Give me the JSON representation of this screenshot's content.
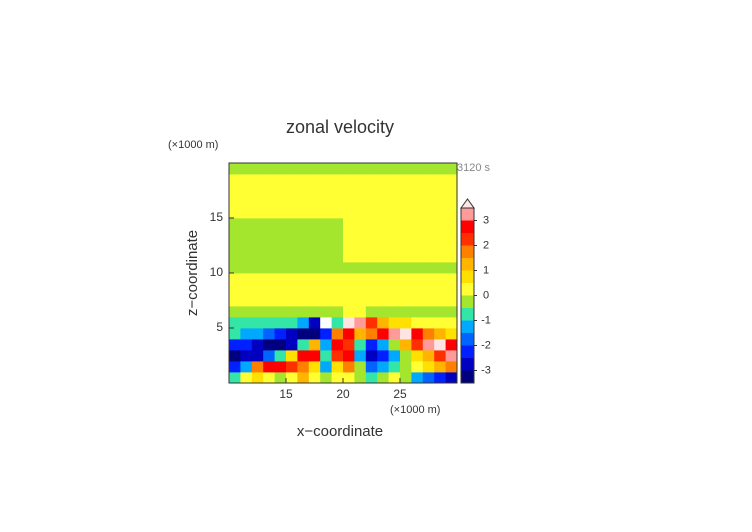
{
  "chart_data": {
    "type": "contour",
    "title": "zonal velocity",
    "xlabel": "x−coordinate",
    "ylabel": "z−coordinate",
    "xunit": "(×1000 m)",
    "yunit": "(×1000 m)",
    "annotation": "3120 s",
    "xlim": [
      10,
      30
    ],
    "ylim": [
      0,
      20
    ],
    "xticks": [
      15,
      20,
      25
    ],
    "yticks": [
      5,
      10,
      15
    ],
    "x": [
      10.5,
      11.5,
      12.5,
      13.5,
      14.5,
      15.5,
      16.5,
      17.5,
      18.5,
      19.5,
      20.5,
      21.5,
      22.5,
      23.5,
      24.5,
      25.5,
      26.5,
      27.5,
      28.5,
      29.5
    ],
    "y": [
      0.5,
      1.5,
      2.5,
      3.5,
      4.5,
      5.5,
      6.5,
      7.5,
      8.5,
      9.5,
      10.5,
      11.5,
      12.5,
      13.5,
      14.5,
      15.5,
      16.5,
      17.5,
      18.5,
      19.5
    ],
    "z": [
      [
        -0.8,
        0.3,
        0.8,
        0.3,
        -0.2,
        0.3,
        1.2,
        0.3,
        -0.3,
        0.2,
        0.2,
        -0.3,
        -0.8,
        -0.3,
        0.3,
        -0.3,
        -1.2,
        -1.8,
        -2.5,
        -2.8
      ],
      [
        -2.5,
        -1.5,
        1.5,
        2.6,
        2.8,
        2.2,
        1.5,
        0.8,
        -1.2,
        0.5,
        1.8,
        -0.5,
        -1.8,
        -1.2,
        -0.6,
        -0.3,
        0.3,
        0.8,
        1.2,
        1.5
      ],
      [
        -3.2,
        -3,
        -2.6,
        -1.8,
        -1,
        0.8,
        2.6,
        2.8,
        -0.6,
        2.2,
        2.8,
        -1.5,
        -2.8,
        -2.5,
        -1.2,
        -0.5,
        0.5,
        1.2,
        2.2,
        3.2
      ],
      [
        -2.2,
        -2.5,
        -3,
        -3.2,
        -3.2,
        -2.8,
        -1,
        1.2,
        -1.5,
        2.6,
        2,
        -1,
        -2.2,
        -1.5,
        -0.4,
        1,
        2,
        3,
        3.6,
        2.5
      ],
      [
        -1,
        -1.2,
        -1.5,
        -1.8,
        -2.2,
        -2.8,
        -3.2,
        -3.4,
        -2.5,
        1.5,
        2.5,
        1.2,
        1.5,
        2.5,
        3.2,
        3.6,
        2.8,
        1.8,
        1.2,
        0.8
      ],
      [
        -0.7,
        -0.8,
        -0.8,
        -0.7,
        -0.8,
        -1,
        -1.5,
        -2.8,
        -4,
        -0.8,
        3.6,
        3.2,
        2,
        1.2,
        0.8,
        0.5,
        0.4,
        0.3,
        0.3,
        0.3
      ],
      [
        -0.2,
        -0.2,
        -0.2,
        -0.2,
        -0.2,
        -0.2,
        -0.3,
        -0.4,
        -0.5,
        -0.2,
        0.3,
        0.3,
        -0.2,
        -0.2,
        -0.2,
        -0.2,
        -0.2,
        -0.2,
        -0.2,
        -0.2
      ],
      [
        0.3,
        0.3,
        0.3,
        0.3,
        0.3,
        0.3,
        0.3,
        0.3,
        0.3,
        0.3,
        0.3,
        0.3,
        0.3,
        0.3,
        0.3,
        0.3,
        0.3,
        0.3,
        0.3,
        0.3
      ],
      [
        0.3,
        0.3,
        0.3,
        0.3,
        0.3,
        0.3,
        0.3,
        0.3,
        0.3,
        0.3,
        0.3,
        0.3,
        0.3,
        0.3,
        0.3,
        0.3,
        0.3,
        0.3,
        0.3,
        0.3
      ],
      [
        0.3,
        0.3,
        0.3,
        0.3,
        0.3,
        0.3,
        0.3,
        0.3,
        0.3,
        0.3,
        0.3,
        0.3,
        0.3,
        0.3,
        0.3,
        0.3,
        0.3,
        0.3,
        0.3,
        0.3
      ],
      [
        -0.2,
        -0.2,
        -0.2,
        -0.2,
        -0.2,
        -0.2,
        -0.2,
        -0.2,
        -0.2,
        -0.2,
        -0.2,
        -0.2,
        -0.2,
        -0.2,
        -0.2,
        -0.2,
        -0.2,
        -0.2,
        -0.2,
        -0.2
      ],
      [
        -0.2,
        -0.2,
        -0.2,
        -0.2,
        -0.2,
        -0.2,
        -0.2,
        -0.2,
        -0.2,
        -0.2,
        0.3,
        0.3,
        0.3,
        0.3,
        0.3,
        0.3,
        0.3,
        0.3,
        0.3,
        0.3
      ],
      [
        -0.2,
        -0.2,
        -0.2,
        -0.2,
        -0.2,
        -0.2,
        -0.2,
        -0.2,
        -0.2,
        -0.2,
        0.3,
        0.3,
        0.3,
        0.3,
        0.3,
        0.3,
        0.3,
        0.3,
        0.3,
        0.3
      ],
      [
        -0.2,
        -0.2,
        -0.2,
        -0.2,
        -0.2,
        -0.2,
        -0.2,
        -0.2,
        -0.2,
        -0.2,
        0.3,
        0.3,
        0.3,
        0.3,
        0.3,
        0.3,
        0.3,
        0.3,
        0.3,
        0.3
      ],
      [
        -0.2,
        -0.2,
        -0.2,
        -0.2,
        -0.2,
        -0.2,
        -0.2,
        -0.2,
        -0.2,
        -0.2,
        0.3,
        0.3,
        0.3,
        0.3,
        0.3,
        0.3,
        0.3,
        0.3,
        0.3,
        0.3
      ],
      [
        0.3,
        0.3,
        0.3,
        0.3,
        0.3,
        0.3,
        0.3,
        0.3,
        0.3,
        0.3,
        0.3,
        0.3,
        0.3,
        0.3,
        0.3,
        0.3,
        0.3,
        0.3,
        0.3,
        0.3
      ],
      [
        0.3,
        0.3,
        0.3,
        0.3,
        0.3,
        0.3,
        0.3,
        0.3,
        0.3,
        0.3,
        0.3,
        0.3,
        0.3,
        0.3,
        0.3,
        0.3,
        0.3,
        0.3,
        0.3,
        0.3
      ],
      [
        0.3,
        0.3,
        0.3,
        0.3,
        0.3,
        0.3,
        0.3,
        0.3,
        0.3,
        0.3,
        0.3,
        0.3,
        0.3,
        0.3,
        0.3,
        0.3,
        0.3,
        0.3,
        0.3,
        0.3
      ],
      [
        0.3,
        0.3,
        0.3,
        0.3,
        0.3,
        0.3,
        0.3,
        0.3,
        0.3,
        0.3,
        0.3,
        0.3,
        0.3,
        0.3,
        0.3,
        0.3,
        0.3,
        0.3,
        0.3,
        0.3
      ],
      [
        -0.2,
        -0.2,
        -0.2,
        -0.2,
        -0.2,
        -0.2,
        -0.2,
        -0.2,
        -0.2,
        -0.2,
        -0.2,
        -0.2,
        -0.2,
        -0.2,
        -0.2,
        -0.2,
        -0.2,
        -0.2,
        -0.2,
        -0.2
      ]
    ],
    "colorbar": {
      "levels": [
        -3.5,
        -3,
        -2.5,
        -2,
        -1.5,
        -1,
        -0.5,
        0,
        0.5,
        1,
        1.5,
        2,
        2.5,
        3,
        3.5
      ],
      "colors": [
        "#ffffff",
        "#00007f",
        "#0000c0",
        "#0020ff",
        "#0064ff",
        "#00a8ff",
        "#33e6a8",
        "#a4e62e",
        "#ffff33",
        "#ffe000",
        "#ffb400",
        "#ff8000",
        "#ff3000",
        "#ff0000",
        "#ff9a9a",
        "#ffe4e4"
      ],
      "ticks": [
        -3,
        -2,
        -1,
        0,
        1,
        2,
        3
      ]
    }
  }
}
